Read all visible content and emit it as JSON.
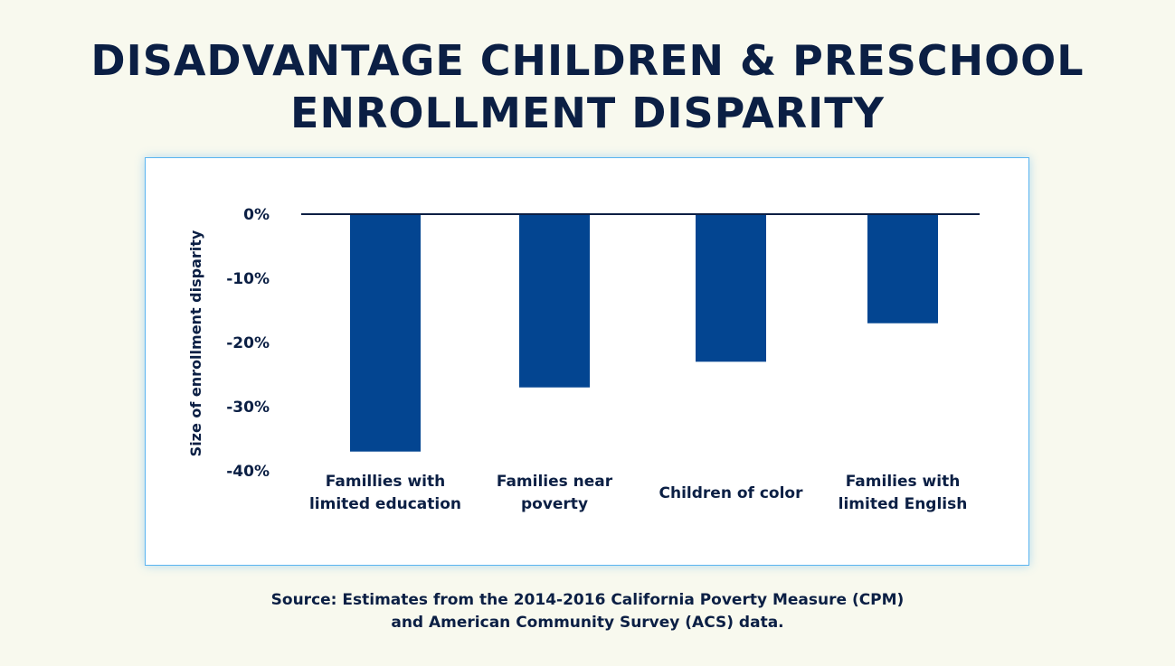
{
  "title_lines": [
    "DISADVANTAGE CHILDREN & PRESCHOOL",
    "ENROLLMENT DISPARITY"
  ],
  "source_lines": [
    "Source: Estimates from the 2014-2016 California Poverty Measure (CPM)",
    "and American Community Survey (ACS) data."
  ],
  "chart_data": {
    "type": "bar",
    "categories": [
      [
        "Famillies with",
        "limited education"
      ],
      [
        "Families near",
        "poverty"
      ],
      [
        "Children of color"
      ],
      [
        "Families with",
        "limited English"
      ]
    ],
    "values": [
      -37,
      -27,
      -23,
      -17
    ],
    "ylabel": "Size of enrollment disparity",
    "ylim": [
      -40,
      0
    ],
    "yticks": [
      0,
      -10,
      -20,
      -30,
      -40
    ],
    "ytick_labels": [
      "0%",
      "-10%",
      "-20%",
      "-30%",
      "-40%"
    ],
    "grid": false,
    "legend": "none",
    "colors": {
      "bar": "#034591",
      "axis": "#0b1f44"
    }
  }
}
